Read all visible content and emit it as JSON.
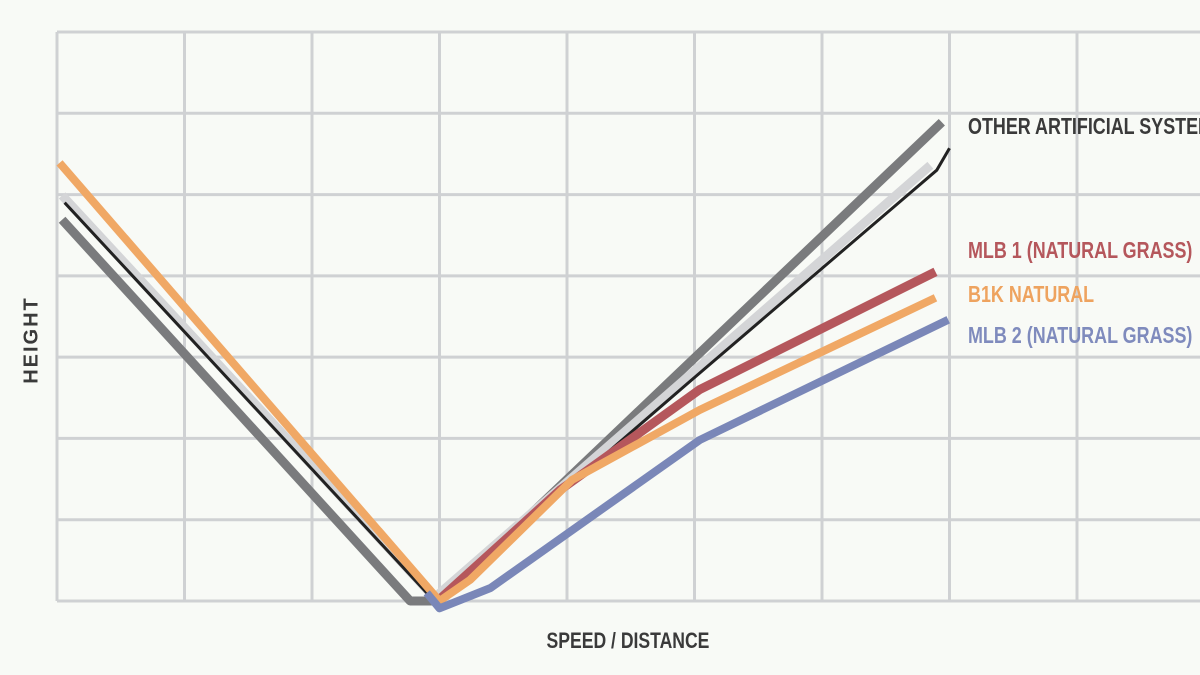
{
  "chart_data": {
    "type": "line",
    "x_label": "SPEED / DISTANCE",
    "y_label": "HEIGHT",
    "xlim": [
      0,
      9
    ],
    "ylim": [
      0,
      7
    ],
    "xticks": [
      0,
      1,
      2,
      3,
      4,
      5,
      6,
      7,
      8
    ],
    "yticks": [
      0,
      1,
      2,
      3,
      4,
      5,
      6,
      7
    ],
    "grid": true,
    "series": [
      {
        "name": "OTHER ARTIFICIAL SYSTEMS",
        "color": "#7a7b7d",
        "label_color": "#3a3a3a",
        "x": [
          0.04,
          2.77,
          3.0,
          6.94
        ],
        "values": [
          4.69,
          0,
          0,
          5.89
        ]
      },
      {
        "color": "#d4d5d7",
        "x": [
          0.04,
          2.96,
          6.85
        ],
        "values": [
          4.99,
          0.04,
          5.36
        ]
      },
      {
        "color": "#222222",
        "x": [
          0.06,
          2.9,
          3.0,
          5.0,
          6.9,
          7.0
        ],
        "values": [
          4.9,
          0.1,
          0.04,
          2.75,
          5.3,
          5.57
        ]
      },
      {
        "name": "MLB 1 (NATURAL GRASS)",
        "color": "#b5575c",
        "label_color": "#b5575c",
        "x": [
          3.0,
          3.95,
          5.04,
          6.89
        ],
        "values": [
          0.02,
          1.37,
          2.6,
          4.05
        ]
      },
      {
        "name": "B1K NATURAL",
        "color": "#f0a865",
        "label_color": "#eea35f",
        "x": [
          0.02,
          3.0,
          3.24,
          4.04,
          5.04,
          6.89
        ],
        "values": [
          5.39,
          0,
          0.26,
          1.49,
          2.35,
          3.73
        ]
      },
      {
        "name": "MLB 2 (NATURAL GRASS)",
        "color": "#7a87b8",
        "label_color": "#7f8bbd",
        "x": [
          2.9,
          3.0,
          3.4,
          5.04,
          6.99
        ],
        "values": [
          0.1,
          -0.09,
          0.16,
          1.98,
          3.46
        ]
      }
    ]
  }
}
